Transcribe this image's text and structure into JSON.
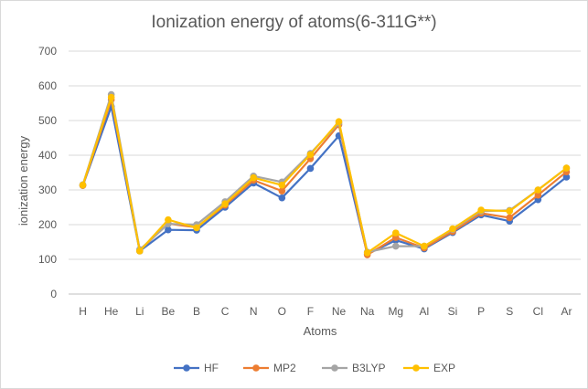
{
  "chart_data": {
    "type": "line",
    "title": "Ionization energy of atoms(6-311G**)",
    "xlabel": "Atoms",
    "ylabel": "ionization energy",
    "ylim": [
      0,
      700
    ],
    "yticks": [
      0,
      100,
      200,
      300,
      400,
      500,
      600,
      700
    ],
    "grid": true,
    "legend_position": "bottom",
    "categories": [
      "H",
      "He",
      "Li",
      "Be",
      "B",
      "C",
      "N",
      "O",
      "F",
      "Ne",
      "Na",
      "Mg",
      "Al",
      "Si",
      "P",
      "S",
      "Cl",
      "Ar"
    ],
    "series": [
      {
        "name": "HF",
        "color": "#4472C4",
        "values": [
          313,
          540,
          124,
          185,
          184,
          250,
          320,
          277,
          362,
          456,
          115,
          155,
          130,
          177,
          228,
          210,
          272,
          337
        ]
      },
      {
        "name": "MP2",
        "color": "#ED7D31",
        "values": [
          313,
          560,
          126,
          203,
          192,
          256,
          328,
          297,
          390,
          488,
          113,
          163,
          133,
          180,
          233,
          220,
          285,
          352
        ]
      },
      {
        "name": "B3LYP",
        "color": "#A5A5A5",
        "values": [
          315,
          575,
          128,
          202,
          200,
          266,
          340,
          323,
          405,
          493,
          121,
          138,
          138,
          186,
          239,
          241,
          300,
          363
        ]
      },
      {
        "name": "EXP",
        "color": "#FFC000",
        "values": [
          314,
          567,
          124,
          214,
          191,
          260,
          335,
          314,
          402,
          497,
          119,
          176,
          138,
          188,
          242,
          239,
          300,
          363
        ]
      }
    ]
  }
}
